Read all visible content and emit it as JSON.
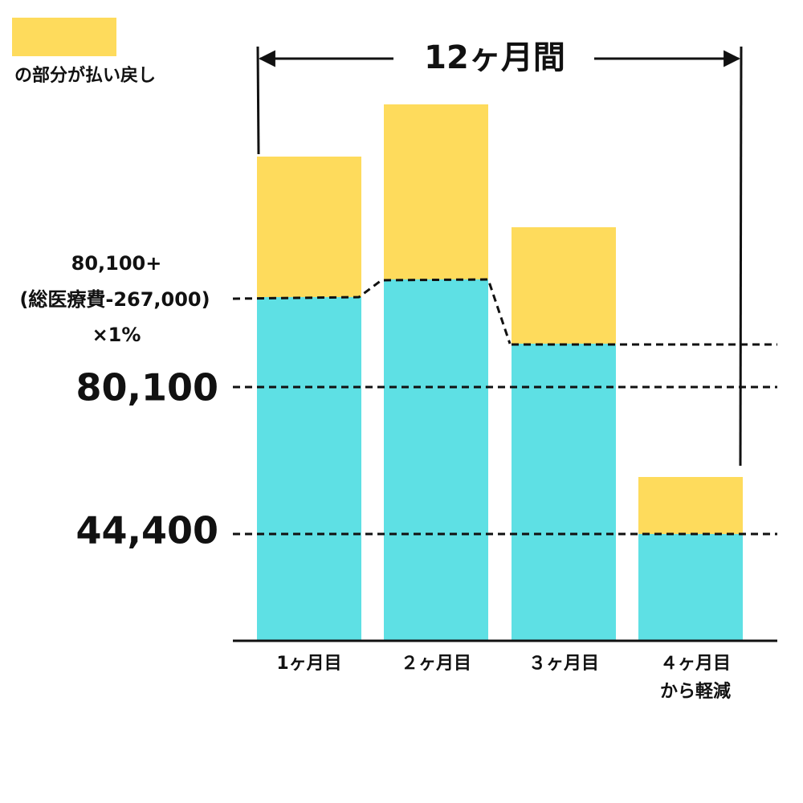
{
  "legend": {
    "label": "の部分が払い戻し"
  },
  "period": {
    "label": "12ヶ月間"
  },
  "formula": {
    "lines": [
      "80,100+",
      "(総医療費-267,000)",
      "×1%"
    ]
  },
  "levels": [
    "80,100",
    "44,400"
  ],
  "months": [
    {
      "label": "1ヶ月目"
    },
    {
      "label": "２ヶ月目"
    },
    {
      "label": "３ヶ月目"
    },
    {
      "label": "４ヶ月目",
      "note": "から軽減"
    }
  ]
}
